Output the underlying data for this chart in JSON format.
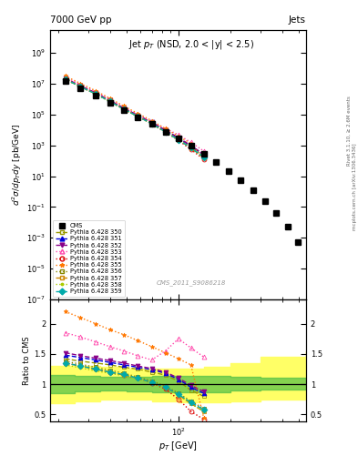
{
  "title_top": "7000 GeV pp",
  "title_right": "Jets",
  "annotation": "Jet $p_T$ (NSD, 2.0 < |y| < 2.5)",
  "watermark": "CMS_2011_S9086218",
  "ylabel_main": "$d^{2}\\sigma/dp_Tdy$ [pb/GeV]",
  "ylabel_ratio": "Ratio to CMS",
  "xlabel": "$p_T$ [GeV]",
  "right_label1": "Rivet 3.1.10, ≥ 2.6M events",
  "right_label2": "mcplots.cern.ch [arXiv:1306.3436]",
  "xlim": [
    18,
    550
  ],
  "ylim_main": [
    1e-07,
    30000000000.0
  ],
  "ylim_ratio": [
    0.38,
    2.4
  ],
  "cms_pt": [
    22,
    27,
    33,
    40,
    48,
    58,
    70,
    84,
    100,
    118,
    140,
    165,
    195,
    230,
    270,
    318,
    370,
    430,
    490
  ],
  "cms_val": [
    15000000.0,
    5000000.0,
    1800000.0,
    600000.0,
    200000.0,
    70000.0,
    25000.0,
    8000.0,
    2800.0,
    1000.0,
    300.0,
    85,
    22,
    5.5,
    1.3,
    0.25,
    0.04,
    0.005,
    0.0005
  ],
  "pythia_pt": [
    22,
    27,
    33,
    40,
    48,
    58,
    70,
    84,
    100,
    118,
    140
  ],
  "series": [
    {
      "label": "Pythia 6.428 350",
      "color": "#999900",
      "marker": "s",
      "mfc": "none",
      "linestyle": "--",
      "lw": 1.0,
      "ratio": [
        1.42,
        1.38,
        1.35,
        1.32,
        1.28,
        1.25,
        1.2,
        1.15,
        1.05,
        0.9,
        0.8
      ]
    },
    {
      "label": "Pythia 6.428 351",
      "color": "#0000dd",
      "marker": "^",
      "mfc": "#0000dd",
      "linestyle": "--",
      "lw": 1.0,
      "ratio": [
        1.48,
        1.44,
        1.4,
        1.36,
        1.32,
        1.28,
        1.24,
        1.18,
        1.08,
        0.95,
        0.85
      ]
    },
    {
      "label": "Pythia 6.428 352",
      "color": "#880088",
      "marker": "v",
      "mfc": "#880088",
      "linestyle": "--",
      "lw": 1.0,
      "ratio": [
        1.52,
        1.47,
        1.43,
        1.39,
        1.35,
        1.3,
        1.26,
        1.2,
        1.1,
        0.98,
        0.88
      ]
    },
    {
      "label": "Pythia 6.428 353",
      "color": "#ff44aa",
      "marker": "^",
      "mfc": "none",
      "linestyle": ":",
      "lw": 1.0,
      "ratio": [
        1.85,
        1.78,
        1.7,
        1.62,
        1.55,
        1.47,
        1.4,
        1.55,
        1.75,
        1.6,
        1.45
      ]
    },
    {
      "label": "Pythia 6.428 354",
      "color": "#dd0000",
      "marker": "o",
      "mfc": "none",
      "linestyle": ":",
      "lw": 1.0,
      "ratio": [
        1.35,
        1.3,
        1.25,
        1.2,
        1.15,
        1.1,
        1.02,
        0.92,
        0.75,
        0.55,
        0.42
      ]
    },
    {
      "label": "Pythia 6.428 355",
      "color": "#ff7700",
      "marker": "*",
      "mfc": "#ff7700",
      "linestyle": ":",
      "lw": 1.0,
      "ratio": [
        2.2,
        2.1,
        2.0,
        1.9,
        1.82,
        1.72,
        1.62,
        1.52,
        1.42,
        1.32,
        0.45
      ]
    },
    {
      "label": "Pythia 6.428 356",
      "color": "#888800",
      "marker": "s",
      "mfc": "none",
      "linestyle": ":",
      "lw": 1.0,
      "ratio": [
        1.38,
        1.33,
        1.28,
        1.23,
        1.18,
        1.12,
        1.05,
        0.97,
        0.85,
        0.72,
        0.6
      ]
    },
    {
      "label": "Pythia 6.428 357",
      "color": "#cc8800",
      "marker": "s",
      "mfc": "none",
      "linestyle": "--",
      "lw": 1.0,
      "ratio": [
        1.35,
        1.3,
        1.25,
        1.2,
        1.15,
        1.1,
        1.03,
        0.95,
        0.82,
        0.68,
        0.55
      ]
    },
    {
      "label": "Pythia 6.428 358",
      "color": "#aacc00",
      "marker": ".",
      "mfc": "#aacc00",
      "linestyle": ":",
      "lw": 1.0,
      "ratio": [
        1.32,
        1.27,
        1.22,
        1.18,
        1.14,
        1.09,
        1.02,
        0.94,
        0.82,
        0.68,
        0.55
      ]
    },
    {
      "label": "Pythia 6.428 359",
      "color": "#00aaaa",
      "marker": "D",
      "mfc": "#00aaaa",
      "linestyle": "--",
      "lw": 1.0,
      "ratio": [
        1.35,
        1.3,
        1.25,
        1.2,
        1.16,
        1.1,
        1.03,
        0.95,
        0.83,
        0.7,
        0.58
      ]
    }
  ],
  "band_pt": [
    18,
    25,
    35,
    50,
    70,
    100,
    140,
    200,
    300,
    550
  ],
  "yellow_lo": [
    0.68,
    0.72,
    0.74,
    0.74,
    0.72,
    0.7,
    0.7,
    0.72,
    0.74,
    0.76
  ],
  "yellow_hi": [
    1.3,
    1.3,
    1.28,
    1.26,
    1.25,
    1.25,
    1.28,
    1.35,
    1.45,
    1.55
  ],
  "green_lo": [
    0.85,
    0.88,
    0.89,
    0.88,
    0.87,
    0.86,
    0.87,
    0.89,
    0.91,
    0.93
  ],
  "green_hi": [
    1.15,
    1.13,
    1.12,
    1.12,
    1.13,
    1.14,
    1.13,
    1.12,
    1.1,
    1.08
  ],
  "background_color": "#ffffff"
}
